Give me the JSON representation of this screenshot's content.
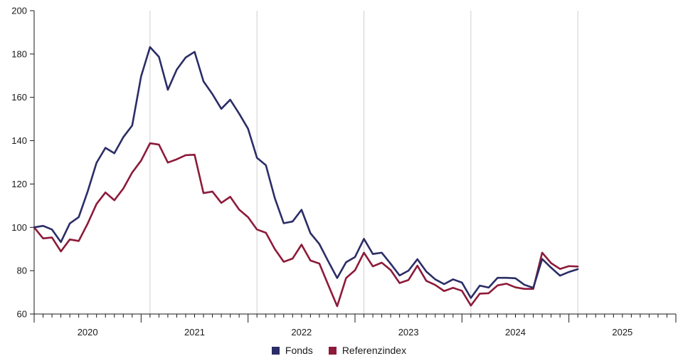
{
  "chart_data": {
    "type": "line",
    "title": "",
    "xlabel": "",
    "ylabel": "",
    "ylim": [
      60,
      200
    ],
    "yticks": [
      60,
      80,
      100,
      120,
      140,
      160,
      180,
      200
    ],
    "xlim": [
      "2019-12",
      "2025-12"
    ],
    "year_labels": [
      "2020",
      "2021",
      "2022",
      "2023",
      "2024",
      "2025"
    ],
    "grid": "vertical lines at year boundaries",
    "legend_position": "bottom-center",
    "x": [
      "2019-12",
      "2020-01",
      "2020-02",
      "2020-03",
      "2020-04",
      "2020-05",
      "2020-06",
      "2020-07",
      "2020-08",
      "2020-09",
      "2020-10",
      "2020-11",
      "2020-12",
      "2021-01",
      "2021-02",
      "2021-03",
      "2021-04",
      "2021-05",
      "2021-06",
      "2021-07",
      "2021-08",
      "2021-09",
      "2021-10",
      "2021-11",
      "2021-12",
      "2022-01",
      "2022-02",
      "2022-03",
      "2022-04",
      "2022-05",
      "2022-06",
      "2022-07",
      "2022-08",
      "2022-09",
      "2022-10",
      "2022-11",
      "2022-12",
      "2023-01",
      "2023-02",
      "2023-03",
      "2023-04",
      "2023-05",
      "2023-06",
      "2023-07",
      "2023-08",
      "2023-09",
      "2023-10",
      "2023-11",
      "2023-12",
      "2024-01",
      "2024-02",
      "2024-03",
      "2024-04",
      "2024-05",
      "2024-06",
      "2024-07",
      "2024-08",
      "2024-09",
      "2024-10",
      "2024-11",
      "2024-12",
      "2025-01"
    ],
    "series": [
      {
        "name": "Fonds",
        "color": "#2b2d66",
        "values": [
          100,
          100.7,
          99,
          93.2,
          101.8,
          104.7,
          116.5,
          129.8,
          136.7,
          134.2,
          141.6,
          147,
          169.7,
          183.2,
          178.7,
          163.5,
          172.8,
          178.4,
          181,
          167.4,
          161.5,
          154.7,
          158.9,
          152.5,
          145.5,
          132.1,
          128.7,
          113.5,
          101.9,
          102.7,
          108.1,
          97.3,
          92.3,
          84.3,
          76.6,
          83.9,
          86.3,
          94.7,
          87.7,
          88.3,
          83.2,
          77.8,
          80,
          85.3,
          79.6,
          76,
          73.8,
          76,
          74.5,
          67.4,
          73.1,
          72.2,
          76.7,
          76.7,
          76.5,
          73.5,
          72.1,
          85.4,
          81.4,
          77.7,
          79.4,
          80.7
        ]
      },
      {
        "name": "Referenzindex",
        "color": "#8d1a3a",
        "values": [
          100,
          94.9,
          95.3,
          88.9,
          94.4,
          93.7,
          101.7,
          110.8,
          116.1,
          112.5,
          117.9,
          125.3,
          130.8,
          138.8,
          138.2,
          129.9,
          131.4,
          133.3,
          133.5,
          115.8,
          116.5,
          111.3,
          114.1,
          108.2,
          104.7,
          99,
          97.5,
          90,
          84.1,
          85.6,
          92,
          84.7,
          83.3,
          73.4,
          63.6,
          76.6,
          80.2,
          88.3,
          82,
          83.7,
          80.3,
          74.3,
          75.7,
          82.3,
          75.3,
          73.4,
          70.6,
          72.1,
          70.7,
          63.9,
          69.4,
          69.6,
          73.2,
          74,
          72.3,
          71.6,
          71.6,
          88.3,
          83.5,
          80.8,
          82.1,
          81.9
        ]
      }
    ]
  },
  "legend": {
    "items": [
      {
        "label": "Fonds",
        "color": "#2b2d66"
      },
      {
        "label": "Referenzindex",
        "color": "#8d1a3a"
      }
    ]
  }
}
